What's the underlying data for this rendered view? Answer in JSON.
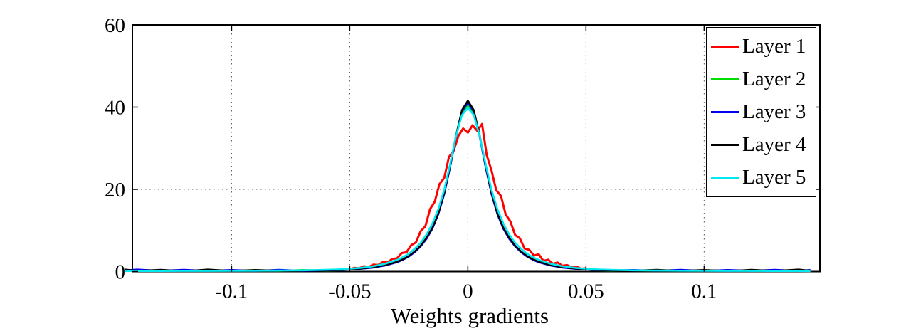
{
  "figure": {
    "background": "#ffffff"
  },
  "chart_data": {
    "type": "line",
    "title": "",
    "xlabel": "Weights gradients",
    "ylabel": "",
    "xlim": [
      -0.142,
      0.149
    ],
    "ylim": [
      0,
      60
    ],
    "grid": true,
    "grid_style": "dotted",
    "xticks": {
      "values": [
        -0.1,
        -0.05,
        0,
        0.05,
        0.1
      ],
      "labels": [
        "-0.1",
        "-0.05",
        "0",
        "0.05",
        "0.1"
      ]
    },
    "yticks": {
      "values": [
        0,
        20,
        40,
        60
      ],
      "labels": [
        "0",
        "20",
        "40",
        "60"
      ]
    },
    "legend": {
      "position": "northeast",
      "entries": [
        {
          "label": "Layer 1",
          "color": "#ff0000"
        },
        {
          "label": "Layer 2",
          "color": "#00dd00"
        },
        {
          "label": "Layer 3",
          "color": "#0000ee"
        },
        {
          "label": "Layer 4",
          "color": "#000000"
        },
        {
          "label": "Layer 5",
          "color": "#00e8f0"
        }
      ]
    },
    "series": [
      {
        "name": "Layer 1",
        "color": "#ff0000",
        "line_width": 3,
        "x": [
          -0.05,
          -0.048,
          -0.046,
          -0.044,
          -0.042,
          -0.04,
          -0.038,
          -0.036,
          -0.034,
          -0.032,
          -0.03,
          -0.028,
          -0.026,
          -0.024,
          -0.022,
          -0.02,
          -0.018,
          -0.016,
          -0.014,
          -0.012,
          -0.01,
          -0.008,
          -0.006,
          -0.004,
          -0.002,
          0,
          0.002,
          0.004,
          0.006,
          0.008,
          0.01,
          0.012,
          0.014,
          0.016,
          0.018,
          0.02,
          0.022,
          0.024,
          0.026,
          0.028,
          0.03,
          0.032,
          0.034,
          0.036,
          0.038,
          0.04,
          0.042,
          0.044,
          0.046,
          0.048,
          0.05
        ],
        "y": [
          0.6,
          0.9,
          0.8,
          1.3,
          1.1,
          1.7,
          1.6,
          2.3,
          2.2,
          3.1,
          3.2,
          4.5,
          4.7,
          6.4,
          7.1,
          9.8,
          11.0,
          15.2,
          17.0,
          21.3,
          22.8,
          27.9,
          29.4,
          33.0,
          34.8,
          33.8,
          35.6,
          34.2,
          35.9,
          28.3,
          24.6,
          19.8,
          18.4,
          13.9,
          12.2,
          8.9,
          8.1,
          5.6,
          5.3,
          3.9,
          4.2,
          2.6,
          2.9,
          1.9,
          2.2,
          1.4,
          1.6,
          1.0,
          1.2,
          0.7,
          0.8
        ]
      },
      {
        "name": "Layer 2",
        "color": "#00dd00",
        "line_width": 2.4,
        "x": [
          -0.145,
          -0.14,
          -0.13,
          -0.12,
          -0.11,
          -0.1,
          -0.09,
          -0.08,
          -0.07,
          -0.06,
          -0.055,
          -0.05,
          -0.045,
          -0.04,
          -0.035,
          -0.03,
          -0.0275,
          -0.025,
          -0.0225,
          -0.02,
          -0.0175,
          -0.015,
          -0.0125,
          -0.01,
          -0.0075,
          -0.005,
          -0.0025,
          0,
          0.0025,
          0.005,
          0.0075,
          0.01,
          0.0125,
          0.015,
          0.0175,
          0.02,
          0.0225,
          0.025,
          0.0275,
          0.03,
          0.035,
          0.04,
          0.045,
          0.05,
          0.055,
          0.06,
          0.07,
          0.08,
          0.09,
          0.1,
          0.11,
          0.12,
          0.13,
          0.14,
          0.145
        ],
        "y": [
          0.15,
          0.3,
          0.15,
          0.3,
          0.25,
          0.2,
          0.3,
          0.15,
          0.4,
          0.25,
          0.3,
          0.5,
          0.7,
          1.0,
          1.5,
          2.3,
          2.9,
          3.7,
          4.8,
          6.2,
          8.05,
          10.5,
          14.0,
          18.9,
          25.5,
          32.9,
          38.5,
          40.5,
          38.5,
          32.9,
          25.5,
          18.9,
          14.0,
          10.5,
          8.05,
          6.2,
          4.8,
          3.7,
          2.9,
          2.3,
          1.5,
          1.0,
          0.7,
          0.5,
          0.3,
          0.25,
          0.35,
          0.2,
          0.3,
          0.25,
          0.35,
          0.15,
          0.3,
          0.2,
          0.3
        ]
      },
      {
        "name": "Layer 3",
        "color": "#0000ee",
        "line_width": 2.4,
        "x": [
          -0.145,
          -0.14,
          -0.13,
          -0.12,
          -0.11,
          -0.1,
          -0.09,
          -0.08,
          -0.07,
          -0.06,
          -0.055,
          -0.05,
          -0.045,
          -0.04,
          -0.035,
          -0.03,
          -0.0275,
          -0.025,
          -0.0225,
          -0.02,
          -0.0175,
          -0.015,
          -0.0125,
          -0.01,
          -0.0075,
          -0.005,
          -0.0025,
          0,
          0.0025,
          0.005,
          0.0075,
          0.01,
          0.0125,
          0.015,
          0.0175,
          0.02,
          0.0225,
          0.025,
          0.0275,
          0.03,
          0.035,
          0.04,
          0.045,
          0.05,
          0.055,
          0.06,
          0.07,
          0.08,
          0.09,
          0.1,
          0.11,
          0.12,
          0.13,
          0.14,
          0.145
        ],
        "y": [
          0.3,
          0.5,
          0.2,
          0.45,
          0.15,
          0.4,
          0.15,
          0.45,
          0.2,
          0.3,
          0.35,
          0.48,
          0.68,
          0.95,
          1.45,
          2.25,
          2.85,
          3.65,
          4.7,
          6.1,
          7.95,
          10.4,
          13.9,
          18.8,
          25.4,
          32.8,
          38.9,
          41.1,
          38.9,
          32.8,
          25.4,
          18.8,
          13.9,
          10.4,
          7.95,
          6.1,
          4.7,
          3.65,
          2.85,
          2.25,
          1.45,
          0.95,
          0.68,
          0.48,
          0.35,
          0.3,
          0.4,
          0.2,
          0.45,
          0.15,
          0.4,
          0.2,
          0.45,
          0.15,
          0.4
        ]
      },
      {
        "name": "Layer 4",
        "color": "#000000",
        "line_width": 2.4,
        "x": [
          -0.145,
          -0.14,
          -0.13,
          -0.12,
          -0.11,
          -0.1,
          -0.09,
          -0.08,
          -0.07,
          -0.06,
          -0.055,
          -0.05,
          -0.045,
          -0.04,
          -0.035,
          -0.03,
          -0.0275,
          -0.025,
          -0.0225,
          -0.02,
          -0.0175,
          -0.015,
          -0.0125,
          -0.01,
          -0.0075,
          -0.005,
          -0.0025,
          0,
          0.0025,
          0.005,
          0.0075,
          0.01,
          0.0125,
          0.015,
          0.0175,
          0.02,
          0.0225,
          0.025,
          0.0275,
          0.03,
          0.035,
          0.04,
          0.045,
          0.05,
          0.055,
          0.06,
          0.07,
          0.08,
          0.09,
          0.1,
          0.11,
          0.12,
          0.13,
          0.14,
          0.145
        ],
        "y": [
          0.5,
          0.15,
          0.45,
          0.1,
          0.5,
          0.15,
          0.4,
          0.2,
          0.3,
          0.35,
          0.4,
          0.55,
          0.75,
          1.05,
          1.55,
          2.4,
          3.0,
          3.8,
          4.9,
          6.3,
          8.2,
          10.7,
          14.2,
          19.2,
          25.8,
          33.2,
          39.3,
          41.6,
          39.3,
          33.2,
          25.8,
          19.2,
          14.2,
          10.7,
          8.2,
          6.3,
          4.9,
          3.8,
          3.0,
          2.4,
          1.55,
          1.05,
          0.75,
          0.55,
          0.4,
          0.35,
          0.25,
          0.45,
          0.15,
          0.4,
          0.1,
          0.45,
          0.15,
          0.5,
          0.2
        ]
      },
      {
        "name": "Layer 5",
        "color": "#00e8f0",
        "line_width": 2.6,
        "x": [
          -0.145,
          -0.14,
          -0.13,
          -0.12,
          -0.11,
          -0.1,
          -0.09,
          -0.08,
          -0.07,
          -0.06,
          -0.055,
          -0.05,
          -0.045,
          -0.04,
          -0.035,
          -0.03,
          -0.0275,
          -0.025,
          -0.0225,
          -0.02,
          -0.0175,
          -0.015,
          -0.0125,
          -0.01,
          -0.0075,
          -0.005,
          -0.0025,
          0,
          0.0025,
          0.005,
          0.0075,
          0.01,
          0.0125,
          0.015,
          0.0175,
          0.02,
          0.0225,
          0.025,
          0.0275,
          0.03,
          0.035,
          0.04,
          0.045,
          0.05,
          0.055,
          0.06,
          0.07,
          0.08,
          0.09,
          0.1,
          0.11,
          0.12,
          0.13,
          0.14,
          0.145
        ],
        "y": [
          0.12,
          0.13,
          0.14,
          0.15,
          0.16,
          0.18,
          0.2,
          0.24,
          0.3,
          0.42,
          0.52,
          0.68,
          0.92,
          1.3,
          1.9,
          2.85,
          3.5,
          4.35,
          5.55,
          7.0,
          9.0,
          11.7,
          15.2,
          19.9,
          26.2,
          33.0,
          38.1,
          39.8,
          38.1,
          33.0,
          26.2,
          19.9,
          15.2,
          11.7,
          9.0,
          7.0,
          5.55,
          4.35,
          3.5,
          2.85,
          1.9,
          1.3,
          0.92,
          0.68,
          0.52,
          0.42,
          0.3,
          0.24,
          0.2,
          0.18,
          0.16,
          0.15,
          0.14,
          0.13,
          0.12
        ]
      }
    ]
  }
}
